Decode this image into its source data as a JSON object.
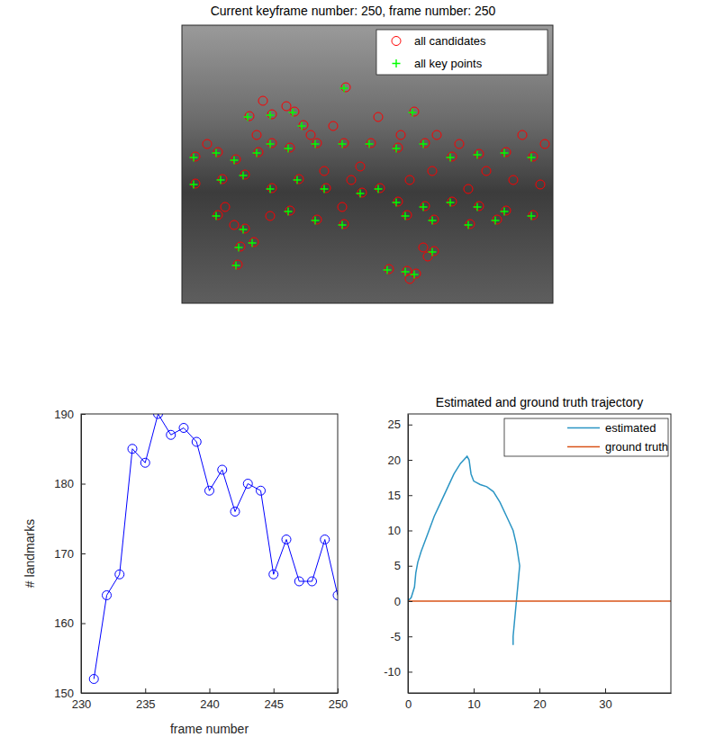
{
  "chart_data": [
    {
      "type": "scatter",
      "title": "Current keyframe number: 250, frame number: 250",
      "xlim": [
        0,
        412
      ],
      "ylim": [
        309,
        0
      ],
      "tick_labels": false,
      "legend": "northeast",
      "series": [
        {
          "name": "all candidates",
          "color": "#ff0000",
          "marker": "o",
          "x": [
            182,
            75,
            100,
            125,
            135,
            258,
            270,
            15,
            40,
            60,
            85,
            100,
            120,
            150,
            180,
            210,
            240,
            300,
            330,
            360,
            390,
            15,
            45,
            70,
            100,
            130,
            160,
            200,
            220,
            240,
            270,
            300,
            330,
            360,
            390,
            40,
            70,
            65,
            62,
            80,
            120,
            150,
            180,
            250,
            280,
            320,
            350,
            230,
            250,
            260,
            280,
            90,
            116,
            143,
            158,
            168,
            198,
            218,
            243,
            253,
            278,
            283,
            308,
            338,
            368,
            398,
            403,
            378,
            318,
            268,
            273,
            253,
            188,
            178,
            98,
            48,
            83,
            28,
            58
          ],
          "values": [
            69,
            101,
            99,
            96,
            111,
            96,
            131,
            146,
            141,
            149,
            141,
            131,
            136,
            131,
            131,
            131,
            136,
            146,
            143,
            141,
            146,
            176,
            171,
            166,
            181,
            171,
            181,
            186,
            181,
            196,
            201,
            196,
            201,
            206,
            211,
            211,
            226,
            246,
            266,
            241,
            206,
            216,
            221,
            211,
            216,
            221,
            216,
            271,
            273,
            276,
            251,
            84,
            90,
            122,
            162,
            112,
            157,
            102,
            122,
            172,
            162,
            122,
            132,
            162,
            172,
            177,
            132,
            122,
            182,
            247,
            257,
            282,
            172,
            202,
            212,
            202,
            122,
            132,
            222
          ]
        },
        {
          "name": "all key points",
          "color": "#00ff00",
          "marker": "+",
          "x": [
            180,
            73,
            98,
            123,
            133,
            256,
            268,
            13,
            38,
            58,
            83,
            98,
            118,
            148,
            178,
            208,
            238,
            298,
            328,
            358,
            388,
            13,
            43,
            68,
            98,
            128,
            158,
            198,
            218,
            238,
            268,
            298,
            328,
            358,
            388,
            38,
            68,
            63,
            60,
            78,
            118,
            148,
            178,
            248,
            278,
            318,
            348,
            228,
            248,
            258,
            278
          ],
          "values": [
            70,
            102,
            100,
            97,
            112,
            97,
            132,
            147,
            142,
            150,
            142,
            132,
            137,
            132,
            132,
            132,
            137,
            147,
            144,
            142,
            147,
            177,
            172,
            167,
            182,
            172,
            182,
            187,
            182,
            197,
            202,
            197,
            202,
            207,
            212,
            212,
            227,
            247,
            267,
            242,
            207,
            217,
            222,
            212,
            217,
            222,
            217,
            272,
            274,
            277,
            252
          ]
        }
      ]
    },
    {
      "type": "line",
      "xlabel": "frame number",
      "ylabel": "# landmarks",
      "x": [
        231,
        232,
        233,
        234,
        235,
        236,
        237,
        238,
        239,
        240,
        241,
        242,
        243,
        244,
        245,
        246,
        247,
        248,
        249,
        250
      ],
      "xlim": [
        230,
        250
      ],
      "ylim": [
        150,
        190
      ],
      "xticks": [
        230,
        235,
        240,
        245,
        250
      ],
      "yticks": [
        150,
        160,
        170,
        180,
        190
      ],
      "series": [
        {
          "color": "#0000ff",
          "marker": "o",
          "values": [
            152,
            164,
            167,
            185,
            183,
            190,
            187,
            188,
            186,
            179,
            182,
            176,
            180,
            179,
            167,
            172,
            166,
            166,
            172,
            164
          ]
        }
      ]
    },
    {
      "type": "line",
      "title": "Estimated and ground truth trajectory",
      "xlim": [
        0,
        40
      ],
      "ylim": [
        -13,
        26.5
      ],
      "xticks": [
        0,
        10,
        20,
        30
      ],
      "yticks": [
        -10,
        -5,
        0,
        5,
        10,
        15,
        20,
        25
      ],
      "legend": "northeast",
      "series": [
        {
          "name": "estimated",
          "color": "#2b95c4",
          "x": [
            0,
            0.5,
            1,
            1.2,
            1.5,
            2,
            3,
            4,
            5,
            6,
            7,
            8,
            9,
            9.3,
            9.6,
            10,
            11,
            12,
            13,
            14,
            15,
            16,
            16.5,
            17,
            16.8,
            16.5,
            16.2,
            16,
            16
          ],
          "values": [
            0,
            0.5,
            2,
            4,
            5.5,
            7,
            9.5,
            12,
            14,
            16,
            18,
            19.5,
            20.5,
            20,
            18,
            17,
            16.5,
            16.2,
            15.5,
            14,
            12,
            10,
            8,
            5,
            3,
            0,
            -3,
            -5,
            -6.2
          ]
        },
        {
          "name": "ground truth",
          "color": "#d95319",
          "x": [
            0,
            40
          ],
          "values": [
            0,
            0
          ]
        }
      ]
    }
  ]
}
